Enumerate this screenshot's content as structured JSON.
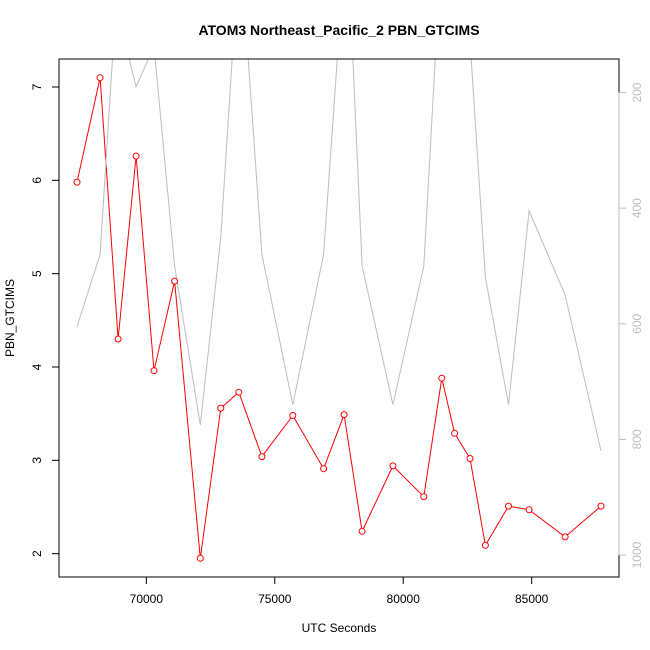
{
  "chart_data": {
    "type": "line",
    "title": "ATOM3 Northeast_Pacific_2 PBN_GTCIMS",
    "xlabel": "UTC Seconds",
    "ylabel": "PBN_GTCIMS",
    "xlim": [
      66600,
      88400
    ],
    "ylim": [
      1.75,
      7.3
    ],
    "y2lim": [
      1038,
      142
    ],
    "y2_reversed": true,
    "grid": false,
    "legend": "none",
    "x_ticks": [
      70000,
      75000,
      80000,
      85000
    ],
    "x_tick_labels": [
      "70000",
      "75000",
      "80000",
      "85000"
    ],
    "y_ticks": [
      2,
      3,
      4,
      5,
      6,
      7
    ],
    "y_tick_labels": [
      "2",
      "3",
      "4",
      "5",
      "6",
      "7"
    ],
    "y2_ticks": [
      200,
      400,
      600,
      800,
      1000
    ],
    "y2_tick_labels": [
      "200",
      "400",
      "600",
      "800",
      "1000"
    ],
    "series": [
      {
        "color": "#ff0000",
        "axis": "left",
        "marker": "open-circle",
        "x": [
          67300,
          68200,
          68900,
          69600,
          70300,
          71100,
          72100,
          72900,
          73600,
          74500,
          75700,
          76900,
          77700,
          78400,
          79600,
          80800,
          81500,
          82000,
          82600,
          83200,
          84100,
          84900,
          86300,
          87700
        ],
        "y": [
          5.98,
          7.1,
          4.3,
          6.26,
          3.96,
          4.92,
          1.95,
          3.56,
          3.73,
          3.04,
          3.48,
          2.91,
          3.49,
          2.24,
          2.94,
          2.61,
          3.88,
          3.29,
          3.02,
          2.09,
          2.51,
          2.47,
          2.18,
          2.51
        ]
      },
      {
        "color": "#bebebe",
        "axis": "right",
        "marker": "none",
        "x": [
          67300,
          68200,
          68700,
          69100,
          69600,
          70300,
          71100,
          72100,
          72900,
          73400,
          73900,
          74500,
          75700,
          76900,
          77500,
          78000,
          78400,
          79600,
          80800,
          81300,
          81700,
          82100,
          82600,
          83200,
          84100,
          84900,
          86300,
          87700
        ],
        "y": [
          605,
          480,
          130,
          100,
          190,
          120,
          500,
          775,
          450,
          100,
          100,
          480,
          740,
          480,
          100,
          100,
          500,
          740,
          500,
          100,
          100,
          100,
          110,
          520,
          740,
          405,
          550,
          820
        ]
      }
    ]
  }
}
